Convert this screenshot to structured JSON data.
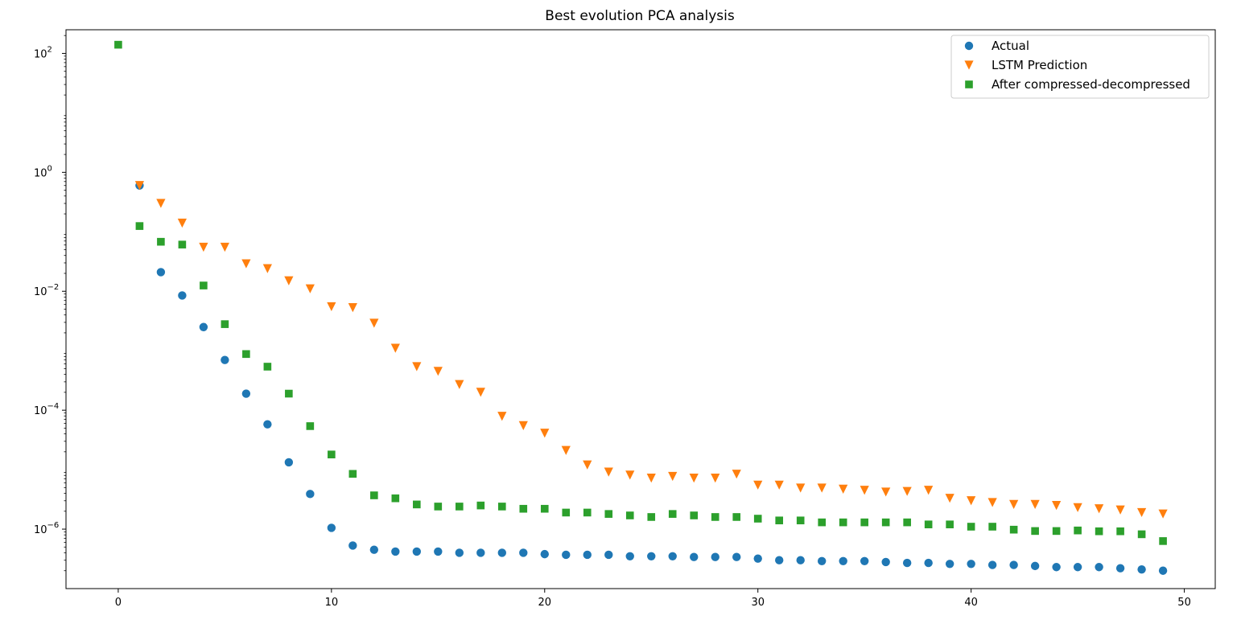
{
  "chart_data": {
    "type": "scatter",
    "title": "Best evolution PCA analysis",
    "xlabel": "",
    "ylabel": "",
    "xlim": [
      -2.45,
      51.45
    ],
    "ylim": [
      1e-07,
      250.0
    ],
    "yscale": "log",
    "grid": false,
    "legend_position": "top-right",
    "x_ticks": [
      0,
      10,
      20,
      30,
      40,
      50
    ],
    "x_tick_labels": [
      "0",
      "10",
      "20",
      "30",
      "40",
      "50"
    ],
    "y_ticks": [
      100.0,
      1,
      0.01,
      0.0001,
      1e-06
    ],
    "y_tick_labels": [
      {
        "base": "10",
        "exp": "2"
      },
      {
        "base": "10",
        "exp": "0"
      },
      {
        "base": "10",
        "exp": "−2"
      },
      {
        "base": "10",
        "exp": "−4"
      },
      {
        "base": "10",
        "exp": "−6"
      }
    ],
    "series": [
      {
        "name": "Actual",
        "marker": "circle",
        "color": "#1f77b4",
        "x": [
          1,
          2,
          3,
          4,
          5,
          6,
          7,
          8,
          9,
          10,
          11,
          12,
          13,
          14,
          15,
          16,
          17,
          18,
          19,
          20,
          21,
          22,
          23,
          24,
          25,
          26,
          27,
          28,
          29,
          30,
          31,
          32,
          33,
          34,
          35,
          36,
          37,
          38,
          39,
          40,
          41,
          42,
          43,
          44,
          45,
          46,
          47,
          48,
          49
        ],
        "y": [
          0.6,
          0.021,
          0.0085,
          0.0025,
          0.0007,
          0.00019,
          5.8e-05,
          1.33e-05,
          3.9e-06,
          1.05e-06,
          5.3e-07,
          4.5e-07,
          4.2e-07,
          4.2e-07,
          4.2e-07,
          4e-07,
          4e-07,
          4e-07,
          4e-07,
          3.8e-07,
          3.7e-07,
          3.7e-07,
          3.7e-07,
          3.5e-07,
          3.5e-07,
          3.5e-07,
          3.4e-07,
          3.4e-07,
          3.4e-07,
          3.2e-07,
          3e-07,
          3e-07,
          2.9e-07,
          2.9e-07,
          2.9e-07,
          2.8e-07,
          2.7e-07,
          2.7e-07,
          2.6e-07,
          2.6e-07,
          2.5e-07,
          2.5e-07,
          2.4e-07,
          2.3e-07,
          2.3e-07,
          2.3e-07,
          2.2e-07,
          2.1e-07,
          2e-07
        ]
      },
      {
        "name": "LSTM Prediction",
        "marker": "triangle_down",
        "color": "#ff7f0e",
        "x": [
          1,
          2,
          3,
          4,
          5,
          6,
          7,
          8,
          9,
          10,
          11,
          12,
          13,
          14,
          15,
          16,
          17,
          18,
          19,
          20,
          21,
          22,
          23,
          24,
          25,
          26,
          27,
          28,
          29,
          30,
          31,
          32,
          33,
          34,
          35,
          36,
          37,
          38,
          39,
          40,
          41,
          42,
          43,
          44,
          45,
          46,
          47,
          48,
          49
        ],
        "y": [
          0.6,
          0.3,
          0.14,
          0.055,
          0.055,
          0.029,
          0.024,
          0.015,
          0.011,
          0.0055,
          0.0053,
          0.0029,
          0.0011,
          0.00054,
          0.00045,
          0.00027,
          0.0002,
          7.9e-05,
          5.5e-05,
          4.1e-05,
          2.1e-05,
          1.2e-05,
          9.1e-06,
          8.1e-06,
          7.2e-06,
          7.7e-06,
          7.2e-06,
          7.2e-06,
          8.4e-06,
          5.5e-06,
          5.5e-06,
          4.9e-06,
          4.9e-06,
          4.7e-06,
          4.5e-06,
          4.2e-06,
          4.3e-06,
          4.5e-06,
          3.3e-06,
          3e-06,
          2.8e-06,
          2.6e-06,
          2.6e-06,
          2.5e-06,
          2.3e-06,
          2.2e-06,
          2.1e-06,
          1.9e-06,
          1.8e-06
        ]
      },
      {
        "name": "After compressed-decompressed",
        "marker": "square",
        "color": "#2ca02c",
        "x": [
          0,
          1,
          2,
          3,
          4,
          5,
          6,
          7,
          8,
          9,
          10,
          11,
          12,
          13,
          14,
          15,
          16,
          17,
          18,
          19,
          20,
          21,
          22,
          23,
          24,
          25,
          26,
          27,
          28,
          29,
          30,
          31,
          32,
          33,
          34,
          35,
          36,
          37,
          38,
          39,
          40,
          41,
          42,
          43,
          44,
          45,
          46,
          47,
          48,
          49
        ],
        "y": [
          140,
          0.125,
          0.068,
          0.061,
          0.0125,
          0.0028,
          0.00088,
          0.00054,
          0.00019,
          5.4e-05,
          1.8e-05,
          8.5e-06,
          3.7e-06,
          3.3e-06,
          2.6e-06,
          2.4e-06,
          2.4e-06,
          2.5e-06,
          2.4e-06,
          2.2e-06,
          2.2e-06,
          1.9e-06,
          1.9e-06,
          1.8e-06,
          1.7e-06,
          1.6e-06,
          1.8e-06,
          1.7e-06,
          1.6e-06,
          1.6e-06,
          1.5e-06,
          1.4e-06,
          1.4e-06,
          1.3e-06,
          1.3e-06,
          1.3e-06,
          1.3e-06,
          1.3e-06,
          1.2e-06,
          1.2e-06,
          1.1e-06,
          1.1e-06,
          9.8e-07,
          9.3e-07,
          9.3e-07,
          9.5e-07,
          9.2e-07,
          9.2e-07,
          8.2e-07,
          6.3e-07
        ]
      }
    ]
  }
}
